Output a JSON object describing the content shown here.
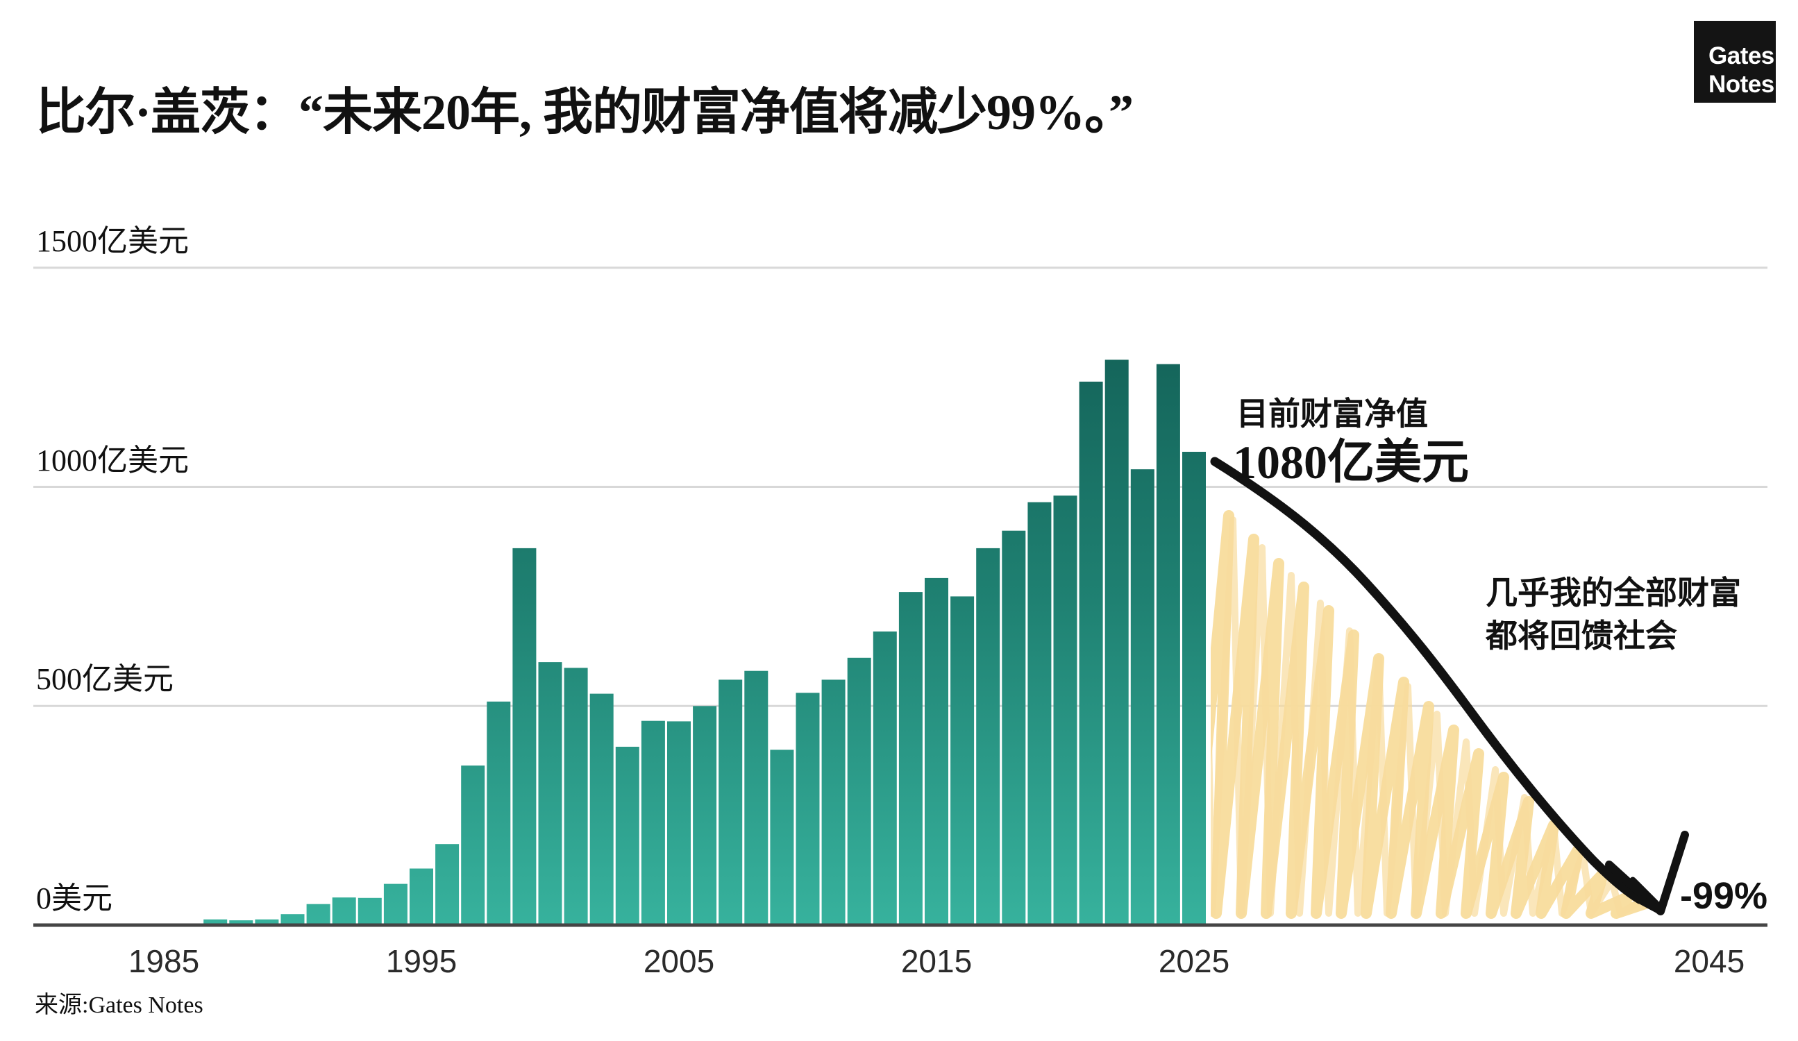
{
  "title": "比尔·盖茨：“未来20年, 我的财富净值将减少99%。”",
  "logo": {
    "line1": "Gates",
    "line2": "Notes"
  },
  "source": "来源:Gates Notes",
  "annotations": {
    "current_label": "目前财富净值",
    "current_value": "1080亿美元",
    "give_back_line1": "几乎我的全部财富",
    "give_back_line2": "都将回馈社会",
    "decline_label": "-99%"
  },
  "colors": {
    "bar_gradient_top": "#115c53",
    "bar_gradient_mid": "#1f8172",
    "bar_gradient_bottom": "#37b29d",
    "scribble_yellow": "#f8dc9c",
    "arrow_black": "#121212",
    "gridline": "#d8d8d8",
    "axis": "#454545"
  },
  "chart_data": {
    "type": "bar",
    "title": "比尔·盖茨净资产（亿美元），1986–2025，及到2045年的预计下降",
    "unit": "亿美元",
    "ylim": [
      0,
      1500
    ],
    "grid": "horizontal",
    "x": [
      1986,
      1987,
      1988,
      1989,
      1990,
      1991,
      1992,
      1993,
      1994,
      1995,
      1996,
      1997,
      1998,
      1999,
      2000,
      2001,
      2002,
      2003,
      2004,
      2005,
      2006,
      2007,
      2008,
      2009,
      2010,
      2011,
      2012,
      2013,
      2014,
      2015,
      2016,
      2017,
      2018,
      2019,
      2020,
      2021,
      2022,
      2023,
      2024,
      2025
    ],
    "values": [
      3,
      13,
      11,
      13,
      25,
      48,
      63,
      62,
      94,
      129,
      185,
      364,
      510,
      860,
      600,
      587,
      528,
      407,
      466,
      465,
      500,
      560,
      580,
      400,
      530,
      560,
      610,
      670,
      760,
      792,
      750,
      860,
      900,
      965,
      980,
      1240,
      1290,
      1040,
      1280,
      1080
    ],
    "yticks": [
      {
        "value": 0,
        "label": "0美元"
      },
      {
        "value": 500,
        "label": "500亿美元"
      },
      {
        "value": 1000,
        "label": "1000亿美元"
      },
      {
        "value": 1500,
        "label": "1500亿美元"
      }
    ],
    "xticks": [
      {
        "year": 1985,
        "label": "1985"
      },
      {
        "year": 1995,
        "label": "1995"
      },
      {
        "year": 2005,
        "label": "2005"
      },
      {
        "year": 2015,
        "label": "2015"
      },
      {
        "year": 2025,
        "label": "2025"
      },
      {
        "year": 2045,
        "label": "2045"
      }
    ],
    "projection": {
      "start_year": 2025,
      "start_value": 1080,
      "end_year": 2045,
      "change_label": "-99%",
      "note": "几乎我的全部财富都将回馈社会"
    }
  }
}
